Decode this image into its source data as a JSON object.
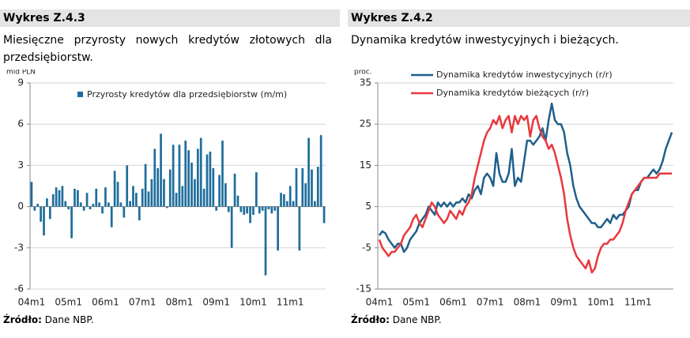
{
  "chart_data": [
    {
      "type": "bar",
      "title": "Wykres Z.4.3",
      "subtitle": "Miesięczne przyrosty nowych kredytów złotowych dla przedsiębiorstw.",
      "ylabel": "mld PLN",
      "categories": [
        "04m1",
        null,
        null,
        null,
        null,
        null,
        null,
        null,
        null,
        null,
        null,
        null,
        "05m1",
        null,
        null,
        null,
        null,
        null,
        null,
        null,
        null,
        null,
        null,
        null,
        "06m1",
        null,
        null,
        null,
        null,
        null,
        null,
        null,
        null,
        null,
        null,
        null,
        "07m1",
        null,
        null,
        null,
        null,
        null,
        null,
        null,
        null,
        null,
        null,
        null,
        "08m1",
        null,
        null,
        null,
        null,
        null,
        null,
        null,
        null,
        null,
        null,
        null,
        "09m1",
        null,
        null,
        null,
        null,
        null,
        null,
        null,
        null,
        null,
        null,
        null,
        "10m1",
        null,
        null,
        null,
        null,
        null,
        null,
        null,
        null,
        null,
        null,
        null,
        "11m1",
        null,
        null,
        null,
        null,
        null,
        null,
        null,
        null,
        null,
        null,
        null
      ],
      "series": [
        {
          "name": "Przyrosty kredytów dla przedsiębiorstw (m/m)",
          "color": "#1f6e9c",
          "values": [
            1.8,
            -0.3,
            0.2,
            -1.1,
            -2.1,
            0.6,
            -0.9,
            0.9,
            1.4,
            1.2,
            1.5,
            0.4,
            -0.2,
            -2.3,
            1.3,
            1.2,
            0.3,
            -0.3,
            1.0,
            -0.2,
            0.2,
            1.3,
            0.3,
            -0.5,
            1.4,
            0.3,
            -1.5,
            2.6,
            1.8,
            0.3,
            -0.8,
            3.0,
            0.4,
            1.5,
            1.0,
            -1.0,
            1.3,
            3.1,
            1.1,
            2.0,
            4.2,
            2.8,
            5.3,
            2.0,
            -0.1,
            2.7,
            4.5,
            1.0,
            4.5,
            1.5,
            4.8,
            4.1,
            3.2,
            2.0,
            4.2,
            5.0,
            1.3,
            3.8,
            4.0,
            2.8,
            -0.3,
            2.3,
            4.8,
            1.7,
            -0.4,
            -3.0,
            2.4,
            0.8,
            -0.4,
            -0.6,
            -0.5,
            -1.2,
            -0.6,
            2.5,
            -0.5,
            -0.3,
            -5.0,
            -0.2,
            -0.5,
            -0.3,
            -3.2,
            1.0,
            0.9,
            0.4,
            1.5,
            0.4,
            2.8,
            -3.2,
            2.8,
            1.7,
            5.0,
            2.7,
            0.4,
            2.9,
            5.2,
            -1.2
          ]
        }
      ],
      "ylim": [
        -6,
        9
      ],
      "yticks": [
        -6,
        -3,
        0,
        3,
        6,
        9
      ],
      "grid": true,
      "legend": "top",
      "source_label": "Źródło:",
      "source": "Dane NBP."
    },
    {
      "type": "line",
      "title": "Wykres Z.4.2",
      "subtitle": "Dynamika kredytów inwestycyjnych i bieżących.",
      "ylabel": "proc.",
      "categories": [
        "04m1",
        null,
        null,
        null,
        null,
        null,
        null,
        null,
        null,
        null,
        null,
        null,
        "05m1",
        null,
        null,
        null,
        null,
        null,
        null,
        null,
        null,
        null,
        null,
        null,
        "06m1",
        null,
        null,
        null,
        null,
        null,
        null,
        null,
        null,
        null,
        null,
        null,
        "07m1",
        null,
        null,
        null,
        null,
        null,
        null,
        null,
        null,
        null,
        null,
        null,
        "08m1",
        null,
        null,
        null,
        null,
        null,
        null,
        null,
        null,
        null,
        null,
        null,
        "09m1",
        null,
        null,
        null,
        null,
        null,
        null,
        null,
        null,
        null,
        null,
        null,
        "10m1",
        null,
        null,
        null,
        null,
        null,
        null,
        null,
        null,
        null,
        null,
        null,
        "11m1",
        null,
        null,
        null,
        null,
        null,
        null,
        null,
        null,
        null,
        null,
        null
      ],
      "series": [
        {
          "name": "Dynamika kredytów inwestycyjnych (r/r)",
          "color": "#1f5f8b",
          "values": [
            -2,
            -1,
            -1.5,
            -3,
            -4,
            -5,
            -4,
            -4,
            -6,
            -5,
            -3,
            -2,
            -1,
            1,
            2,
            3,
            5,
            4,
            3,
            6,
            5,
            6,
            5,
            6,
            5,
            6,
            6,
            7,
            6,
            8,
            7,
            9,
            10,
            8,
            12,
            13,
            12,
            10,
            18,
            13,
            11,
            11,
            13,
            19,
            10,
            12,
            11,
            16,
            21,
            21,
            20,
            21,
            22,
            24,
            21,
            26,
            30,
            26,
            25,
            25,
            23,
            18,
            15,
            10,
            7,
            5,
            4,
            3,
            2,
            1,
            1,
            0,
            0,
            1,
            2,
            1,
            3,
            2,
            3,
            3,
            4,
            5,
            8,
            9,
            9,
            11,
            12,
            12,
            13,
            14,
            13,
            14,
            16,
            19,
            21,
            23
          ]
        },
        {
          "name": "Dynamika kredytów bieżących (r/r)",
          "color": "#e8383d",
          "values": [
            -3,
            -5,
            -6,
            -7,
            -6,
            -6,
            -5,
            -4,
            -2,
            -1,
            0,
            2,
            3,
            1,
            0,
            2,
            4,
            6,
            5,
            3,
            2,
            1,
            2,
            4,
            3,
            2,
            4,
            3,
            5,
            6,
            8,
            12,
            15,
            18,
            21,
            23,
            24,
            26,
            25,
            27,
            24,
            26,
            27,
            23,
            27,
            25,
            27,
            26,
            27,
            22,
            26,
            27,
            24,
            22,
            21,
            19,
            20,
            18,
            15,
            12,
            8,
            2,
            -2,
            -5,
            -7,
            -8,
            -9,
            -10,
            -8,
            -11,
            -10,
            -7,
            -5,
            -4,
            -4,
            -3,
            -3,
            -2,
            -1,
            1,
            4,
            6,
            8,
            9,
            10,
            11,
            12,
            12,
            12,
            12,
            12,
            13,
            13,
            13,
            13,
            13
          ]
        }
      ],
      "ylim": [
        -15,
        35
      ],
      "yticks": [
        -15,
        -5,
        5,
        15,
        25,
        35
      ],
      "grid": true,
      "legend": "top",
      "source_label": "Źródło:",
      "source": "Dane NBP."
    }
  ]
}
